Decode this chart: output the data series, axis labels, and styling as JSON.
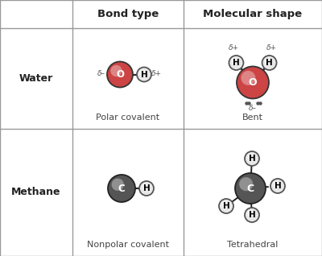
{
  "table_bg": "#ffffff",
  "border_color": "#888888",
  "header_font_size": 9.5,
  "row_label_font_size": 9,
  "caption_font_size": 8,
  "delta_font_size": 6.5,
  "water_O_color": "#cc4444",
  "water_O_edge": "#333333",
  "water_O_grad": "#e87070",
  "water_H_color": "#e8e8e8",
  "water_H_edge": "#555555",
  "carbon_color": "#555555",
  "carbon_edge": "#222222",
  "H_methane_color": "#e8e8e8",
  "H_methane_edge": "#555555",
  "lone_pair_color": "#555555",
  "col_headers": [
    "Bond type",
    "Molecular shape"
  ],
  "row_headers": [
    "Water",
    "Methane"
  ],
  "captions": [
    "Polar covalent",
    "Bent",
    "Nonpolar covalent",
    "Tetrahedral"
  ],
  "col_splits": [
    0.235,
    0.615
  ],
  "row_splits": [
    0.125
  ],
  "row_divider": 0.5
}
